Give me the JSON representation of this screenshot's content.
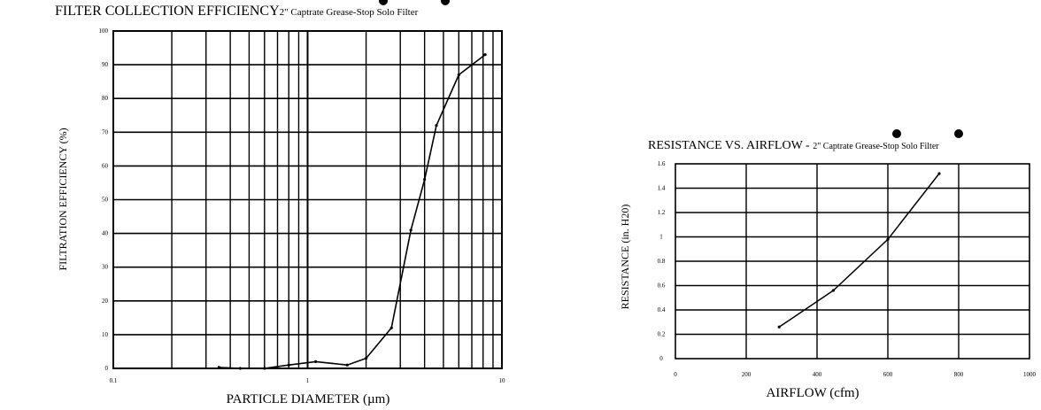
{
  "chart_data": [
    {
      "type": "line",
      "title": "FILTER COLLECTION EFFICIENCY",
      "subtitle": "2\" Captrate Grease-Stop Solo Filter",
      "xlabel": "PARTICLE DIAMETER (µm)",
      "ylabel": "FILTRATION EFFICIENCY (%)",
      "x_scale": "log",
      "xlim": [
        0.1,
        10
      ],
      "ylim": [
        0,
        100
      ],
      "x_tick_labels": [
        "0.1",
        "1",
        "10"
      ],
      "x_tick_values": [
        0.1,
        1,
        10
      ],
      "y_tick_labels": [
        "0",
        "10",
        "20",
        "30",
        "40",
        "50",
        "60",
        "70",
        "80",
        "90",
        "100"
      ],
      "y_tick_values": [
        0,
        10,
        20,
        30,
        40,
        50,
        60,
        70,
        80,
        90,
        100
      ],
      "grid": true,
      "series": [
        {
          "x": [
            0.35,
            0.45,
            0.6,
            0.8,
            1.1,
            1.6,
            2.0,
            2.7,
            3.4,
            4.0,
            4.6,
            6.0,
            8.2
          ],
          "y": [
            0.3,
            0,
            0,
            1.0,
            2.0,
            1.0,
            3.0,
            12.0,
            41.0,
            56.0,
            72.0,
            87.0,
            93.0
          ]
        }
      ]
    },
    {
      "type": "line",
      "title": "RESISTANCE VS. AIRFLOW - ",
      "subtitle": "2\" Captrate Grease-Stop Solo Filter",
      "xlabel": "AIRFLOW (cfm)",
      "ylabel": "RESISTANCE (in. H20)",
      "xlim": [
        0,
        1000
      ],
      "ylim": [
        0,
        1.6
      ],
      "x_tick_labels": [
        "0",
        "200",
        "400",
        "600",
        "800",
        "1000"
      ],
      "x_tick_values": [
        0,
        200,
        400,
        600,
        800,
        1000
      ],
      "y_tick_labels": [
        "0",
        "0.2",
        "0.4",
        "0.6",
        "0.8",
        "1",
        "1.2",
        "1.4",
        "1.6"
      ],
      "y_tick_values": [
        0,
        0.2,
        0.4,
        0.6,
        0.8,
        1.0,
        1.2,
        1.4,
        1.6
      ],
      "grid": true,
      "series": [
        {
          "x": [
            293,
            446,
            600,
            745
          ],
          "y": [
            0.26,
            0.56,
            0.98,
            1.52
          ]
        }
      ]
    }
  ]
}
